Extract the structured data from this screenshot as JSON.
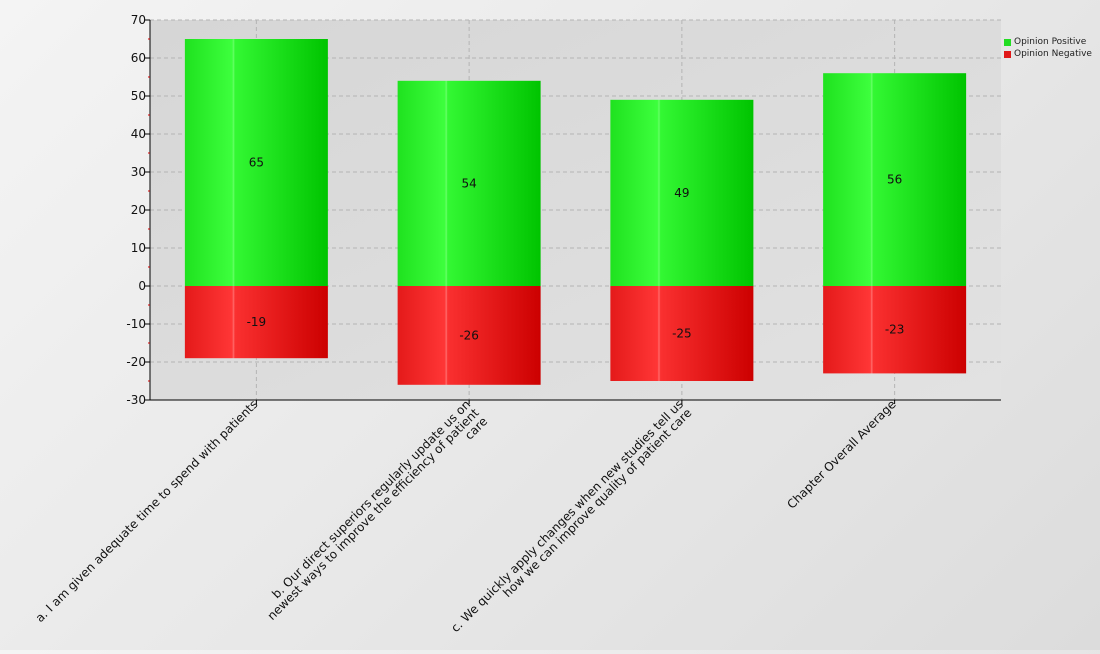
{
  "chart_data": {
    "type": "bar",
    "stacked": true,
    "categories": [
      "a. I am given adequate time to spend with patients",
      "b. Our direct superiors regularly update us on newest ways to improve the efficiency of patient care",
      "c. We quickly apply changes when new studies tell us how we can improve quality of patient care",
      "Chapter Overall Average"
    ],
    "series": [
      {
        "name": "Opinion Positive",
        "values": [
          65,
          54,
          49,
          56
        ],
        "color": "#22dd22"
      },
      {
        "name": "Opinion Negative",
        "values": [
          -19,
          -26,
          -25,
          -23
        ],
        "color": "#e01818"
      }
    ],
    "ylim": [
      -30,
      70
    ],
    "yticks": [
      70,
      60,
      50,
      40,
      30,
      20,
      10,
      0,
      -10,
      -20,
      -30
    ],
    "grid": true,
    "legend_position": "top-right",
    "title": "",
    "xlabel": "",
    "ylabel": ""
  }
}
